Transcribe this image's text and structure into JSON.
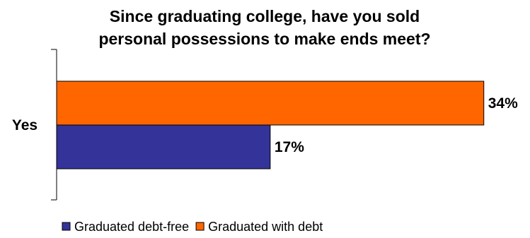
{
  "chart_data": {
    "type": "bar",
    "orientation": "horizontal",
    "title": "Since graduating college, have you sold personal possessions to make ends meet?",
    "title_lines": [
      "Since graduating college, have you sold",
      "personal possessions to make ends meet?"
    ],
    "categories": [
      "Yes"
    ],
    "series": [
      {
        "name": "Graduated with debt",
        "values": [
          34
        ],
        "color": "#ff6600",
        "label": "34%"
      },
      {
        "name": "Graduated debt-free",
        "values": [
          17
        ],
        "color": "#333399",
        "label": "17%"
      }
    ],
    "legend_order": [
      "Graduated debt-free",
      "Graduated with debt"
    ],
    "legend_placement": "bottom",
    "xlim": [
      0,
      37
    ],
    "value_unit": "%",
    "grid": false,
    "xlabel": "",
    "ylabel": ""
  }
}
